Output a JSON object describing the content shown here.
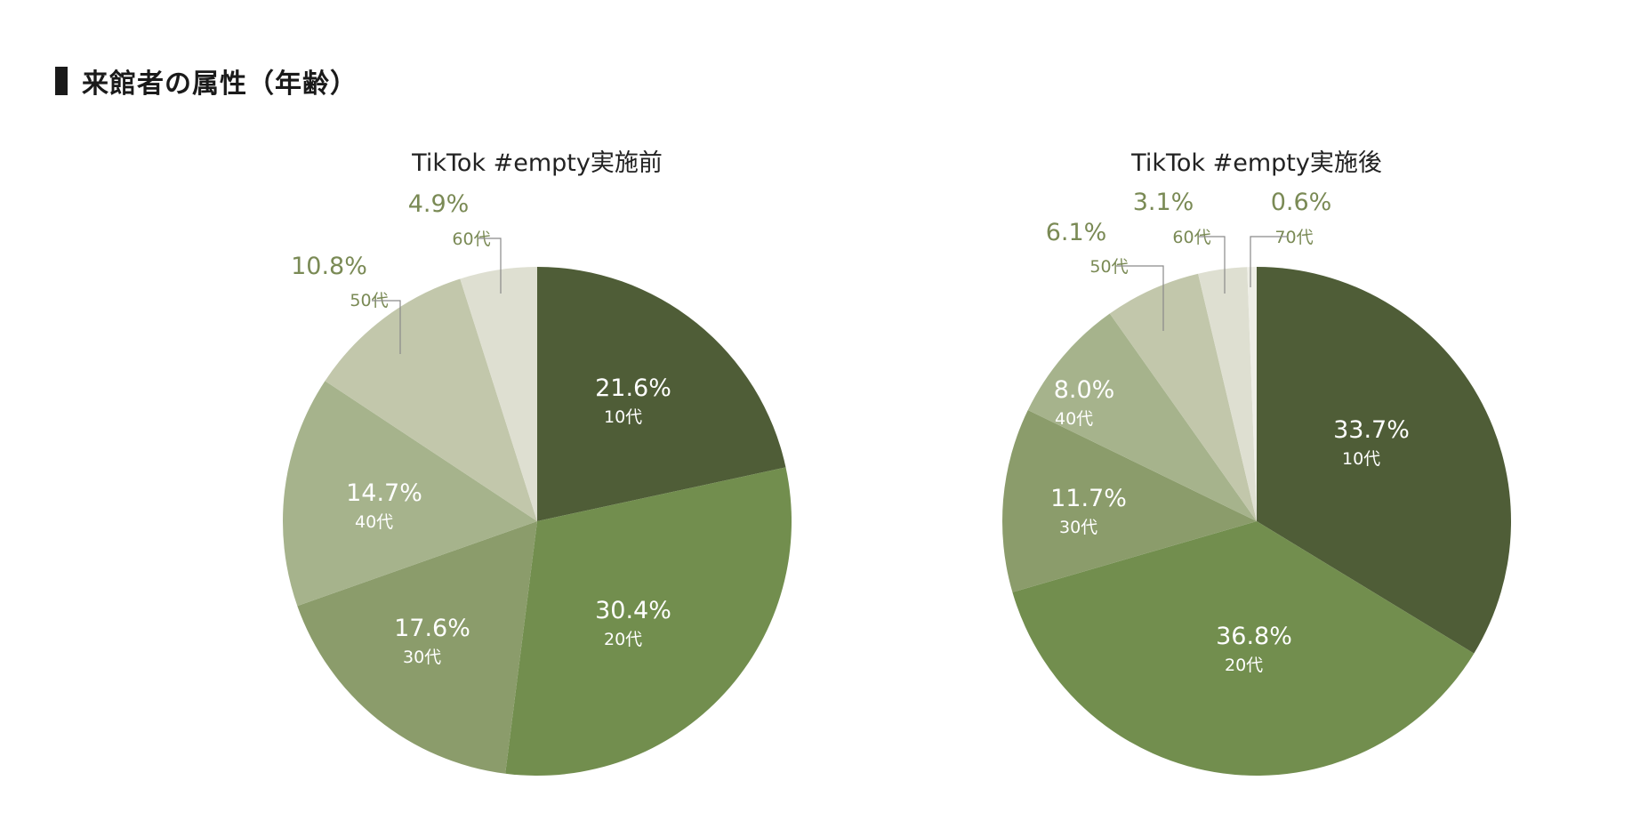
{
  "heading": "来館者の属性（年齢）",
  "palette": {
    "10代": "#4f5d37",
    "20代": "#728e4e",
    "30代": "#8b9c6b",
    "40代": "#a6b38c",
    "50代": "#c2c7ab",
    "60代": "#dedfd1",
    "70代": "#eeeee6",
    "inner_text": "#ffffff",
    "outer_text": "#7a8a55",
    "leader": "#8a8a8a"
  },
  "chart_data": [
    {
      "type": "pie",
      "title": "TikTok #empty実施前",
      "slices": [
        {
          "label": "10代",
          "value": 21.6,
          "value_label": "21.6%"
        },
        {
          "label": "20代",
          "value": 30.4,
          "value_label": "30.4%"
        },
        {
          "label": "30代",
          "value": 17.6,
          "value_label": "17.6%"
        },
        {
          "label": "40代",
          "value": 14.7,
          "value_label": "14.7%"
        },
        {
          "label": "50代",
          "value": 10.8,
          "value_label": "10.8%"
        },
        {
          "label": "60代",
          "value": 4.9,
          "value_label": "4.9%"
        }
      ]
    },
    {
      "type": "pie",
      "title": "TikTok #empty実施後",
      "slices": [
        {
          "label": "10代",
          "value": 33.7,
          "value_label": "33.7%"
        },
        {
          "label": "20代",
          "value": 36.8,
          "value_label": "36.8%"
        },
        {
          "label": "30代",
          "value": 11.7,
          "value_label": "11.7%"
        },
        {
          "label": "40代",
          "value": 8.0,
          "value_label": "8.0%"
        },
        {
          "label": "50代",
          "value": 6.1,
          "value_label": "6.1%"
        },
        {
          "label": "60代",
          "value": 3.1,
          "value_label": "3.1%"
        },
        {
          "label": "70代",
          "value": 0.6,
          "value_label": "0.6%"
        }
      ]
    }
  ]
}
